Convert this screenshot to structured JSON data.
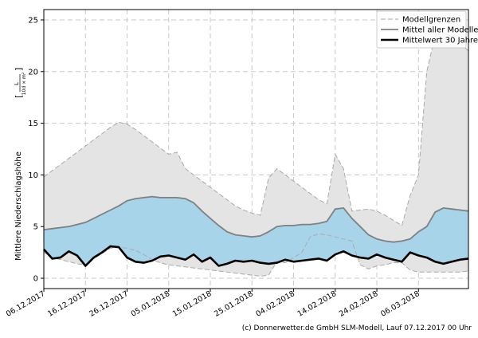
{
  "chart_data": {
    "type": "area",
    "title": "",
    "ylabel_main": "Mittlere Niederschlagshöhe",
    "ylabel_unit_num": "L",
    "ylabel_unit_den": "10d × m²",
    "xlabel": "",
    "ylim": [
      -1,
      26
    ],
    "yticks": [
      0,
      5,
      10,
      15,
      20,
      25
    ],
    "ytick_labels": [
      "0",
      "5",
      "10",
      "15",
      "20",
      "25"
    ],
    "x_start": "06.12.2017",
    "x_end": "18.03.2018",
    "xticks": [
      "06.12.2017",
      "16.12.2017",
      "26.12.2017",
      "05.01.2018",
      "15.01.2018",
      "25.01.2018",
      "04.02.2018",
      "14.02.2018",
      "24.02.2018",
      "06.03.2018"
    ],
    "xtick_labels": [
      "06.12.2017",
      "16.12.2017",
      "26.12.2017",
      "05.01.2018",
      "15.01.2018",
      "25.01.2018",
      "04.02.2018",
      "14.02.2018",
      "24.02.2018",
      "06.03.2018"
    ],
    "grid": true,
    "legend_position": "top-right",
    "x": [
      "06.12.2017",
      "08.12.2017",
      "10.12.2017",
      "12.12.2017",
      "14.12.2017",
      "16.12.2017",
      "18.12.2017",
      "20.12.2017",
      "22.12.2017",
      "24.12.2017",
      "26.12.2017",
      "28.12.2017",
      "30.12.2017",
      "01.01.2018",
      "03.01.2018",
      "05.01.2018",
      "07.01.2018",
      "09.01.2018",
      "11.01.2018",
      "13.01.2018",
      "15.01.2018",
      "17.01.2018",
      "19.01.2018",
      "21.01.2018",
      "23.01.2018",
      "25.01.2018",
      "27.01.2018",
      "29.01.2018",
      "31.01.2018",
      "02.02.2018",
      "04.02.2018",
      "06.02.2018",
      "08.02.2018",
      "10.02.2018",
      "12.02.2018",
      "14.02.2018",
      "16.02.2018",
      "18.02.2018",
      "20.02.2018",
      "22.02.2018",
      "24.02.2018",
      "26.02.2018",
      "28.02.2018",
      "02.03.2018",
      "04.03.2018",
      "06.03.2018",
      "08.03.2018",
      "10.03.2018",
      "12.03.2018",
      "14.03.2018",
      "16.03.2018",
      "18.03.2018"
    ],
    "series": [
      {
        "name": "Modellgrenzen",
        "style": "dashed-envelope",
        "color": "#aaaaaa",
        "fill": "#e4e4e4",
        "upper": [
          9.8,
          10.4,
          11.0,
          11.6,
          12.2,
          12.8,
          13.4,
          14.0,
          14.6,
          15.1,
          14.9,
          14.4,
          13.8,
          13.2,
          12.6,
          12.0,
          12.2,
          10.6,
          10.0,
          9.4,
          8.8,
          8.2,
          7.6,
          7.0,
          6.6,
          6.3,
          6.1,
          9.7,
          10.6,
          10.0,
          9.4,
          8.8,
          8.2,
          7.6,
          7.2,
          12.0,
          10.6,
          6.5,
          6.6,
          6.7,
          6.5,
          6.1,
          5.6,
          5.1,
          8.0,
          10.0,
          20.0,
          23.5,
          23.8,
          23.4,
          22.8,
          22.0
        ],
        "lower": [
          2.5,
          2.0,
          1.8,
          1.6,
          1.4,
          1.3,
          1.9,
          2.4,
          2.9,
          3.0,
          2.9,
          2.7,
          2.3,
          1.8,
          1.5,
          1.3,
          1.2,
          1.1,
          1.0,
          0.9,
          0.8,
          0.7,
          0.6,
          0.5,
          0.4,
          0.3,
          0.2,
          0.3,
          1.6,
          1.5,
          2.0,
          2.5,
          4.0,
          4.3,
          4.2,
          4.0,
          3.8,
          3.6,
          1.3,
          0.9,
          1.2,
          1.3,
          1.5,
          1.5,
          0.8,
          0.6,
          0.6,
          0.6,
          0.6,
          0.6,
          0.6,
          0.7
        ]
      },
      {
        "name": "Mittel aller Modelle",
        "style": "line",
        "color": "#808080",
        "fill": "#a8d4ea",
        "values": [
          4.7,
          4.8,
          4.9,
          5.0,
          5.2,
          5.4,
          5.8,
          6.2,
          6.6,
          7.0,
          7.5,
          7.7,
          7.8,
          7.9,
          7.8,
          7.8,
          7.8,
          7.7,
          7.3,
          6.5,
          5.8,
          5.1,
          4.5,
          4.2,
          4.1,
          4.0,
          4.1,
          4.5,
          5.0,
          5.1,
          5.1,
          5.2,
          5.2,
          5.3,
          5.5,
          6.7,
          6.8,
          5.8,
          5.0,
          4.2,
          3.8,
          3.6,
          3.5,
          3.6,
          3.8,
          4.5,
          5.0,
          6.4,
          6.8,
          6.7,
          6.6,
          6.5
        ]
      },
      {
        "name": "Mittelwert 30 Jahre",
        "style": "thick-line",
        "color": "#000000",
        "values": [
          2.8,
          1.9,
          2.0,
          2.6,
          2.2,
          1.2,
          2.0,
          2.5,
          3.1,
          3.0,
          2.0,
          1.6,
          1.5,
          1.7,
          2.1,
          2.2,
          2.0,
          1.8,
          2.3,
          1.6,
          2.0,
          1.2,
          1.4,
          1.7,
          1.6,
          1.7,
          1.5,
          1.4,
          1.5,
          1.8,
          1.6,
          1.7,
          1.8,
          1.9,
          1.7,
          2.3,
          2.6,
          2.2,
          2.0,
          1.9,
          2.3,
          2.0,
          1.8,
          1.6,
          2.5,
          2.2,
          2.0,
          1.6,
          1.4,
          1.6,
          1.8,
          1.9
        ]
      }
    ]
  },
  "footer": {
    "copyright": "(c) Donnerwetter.de GmbH SLM-Modell, Lauf 07.12.2017 00 Uhr"
  }
}
